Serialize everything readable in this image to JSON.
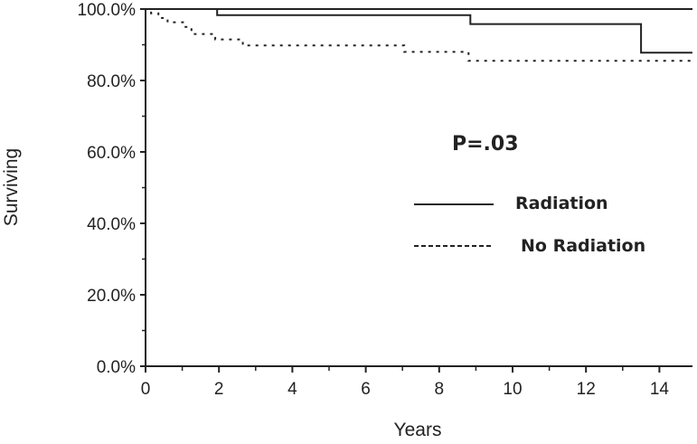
{
  "chart_data": {
    "type": "line",
    "xlabel": "Years",
    "ylabel": "Surviving",
    "xlim": [
      0,
      15
    ],
    "ylim": [
      0,
      100
    ],
    "x_ticks": [
      0,
      2,
      4,
      6,
      8,
      10,
      12,
      14
    ],
    "x_tick_labels": [
      "0",
      "2",
      "4",
      "6",
      "8",
      "10",
      "12",
      "14"
    ],
    "y_ticks": [
      0,
      20,
      40,
      60,
      80,
      100
    ],
    "y_tick_labels": [
      "0.0%",
      "20.0%",
      "40.0%",
      "60.0%",
      "80.0%",
      "100.0%"
    ],
    "grid": false,
    "legend_placement": "center-right",
    "annotation": "P=.03",
    "series": [
      {
        "name": "Radiation",
        "line_style": "solid",
        "color": "#222222",
        "x": [
          0,
          1.95,
          1.95,
          8.85,
          8.85,
          13.5,
          13.5,
          14.9
        ],
        "y": [
          100,
          100,
          98.3,
          98.3,
          95.8,
          95.8,
          87.8,
          87.8
        ]
      },
      {
        "name": "No Radiation",
        "line_style": "dotted",
        "color": "#222222",
        "x": [
          0,
          0.15,
          0.15,
          0.35,
          0.35,
          0.6,
          0.6,
          1.05,
          1.05,
          1.25,
          1.25,
          1.9,
          1.9,
          2.65,
          2.65,
          7.05,
          7.05,
          8.8,
          8.8,
          14.9
        ],
        "y": [
          100,
          100,
          98.8,
          98.8,
          97.5,
          97.5,
          96.3,
          96.3,
          95.0,
          95.0,
          93.0,
          93.0,
          91.5,
          91.5,
          89.8,
          89.8,
          88.0,
          88.0,
          85.5,
          85.5
        ]
      }
    ]
  }
}
